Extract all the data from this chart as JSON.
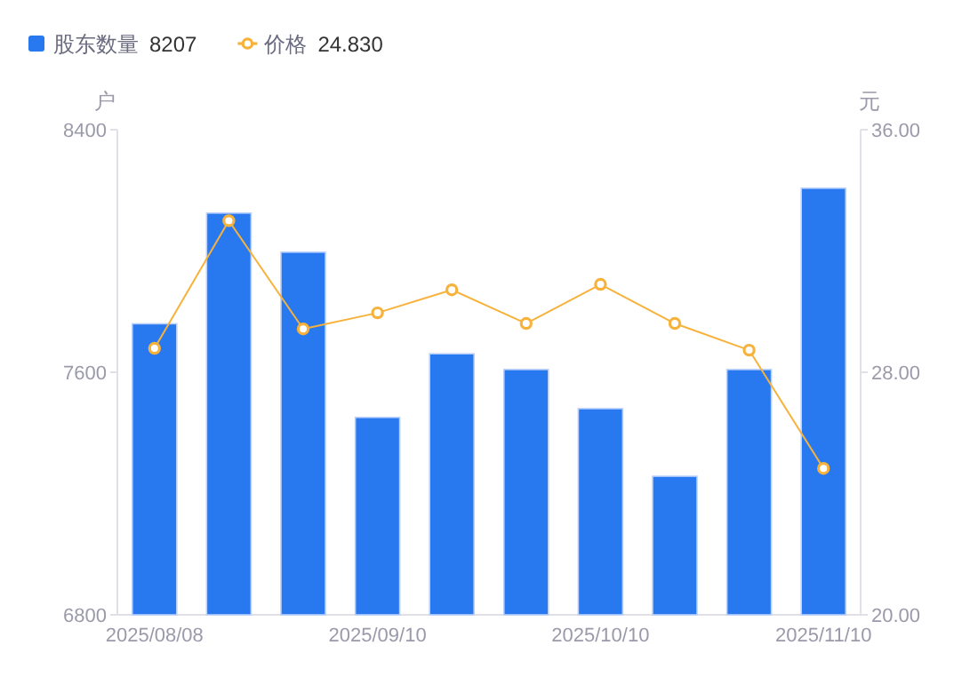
{
  "chart_data": {
    "type": "bar",
    "ylabel": "户",
    "y2label": "元",
    "categories": [
      "2025/08/08",
      null,
      null,
      "2025/09/10",
      null,
      null,
      "2025/10/10",
      null,
      null,
      "2025/11/10"
    ],
    "series": [
      {
        "name": "股东数量",
        "color": "#2878f0",
        "values": [
          7760,
          8125,
          7996,
          7451,
          7661,
          7609,
          7480,
          7257,
          7609,
          8207
        ]
      },
      {
        "name": "价格",
        "type": "line",
        "axis": "y2",
        "color": "#f7b23b",
        "marker": "circle",
        "line_style": "solid",
        "values": [
          28.79,
          33.0,
          29.43,
          29.96,
          30.72,
          29.61,
          30.9,
          29.61,
          28.73,
          24.83
        ]
      }
    ],
    "ylim": [
      6800,
      8400
    ],
    "yticks": [
      6800,
      7600,
      8400
    ],
    "y2lim": [
      20,
      36
    ],
    "y2ticks": [
      {
        "value": 20,
        "label": "20.00"
      },
      {
        "value": 28,
        "label": "28.00"
      },
      {
        "value": 36,
        "label": "36.00"
      }
    ],
    "legend": "top left",
    "grid": false,
    "annotations": [
      "8207",
      "24.830"
    ]
  }
}
